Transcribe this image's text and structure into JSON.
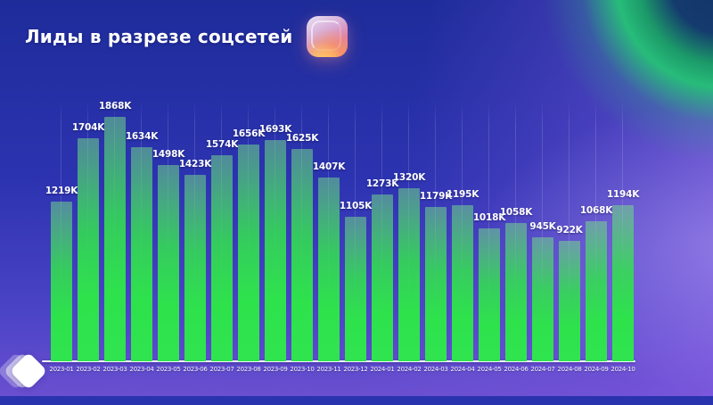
{
  "header": {
    "title": "Лиды в разрезе соцсетей",
    "icon": "instagram-app-icon"
  },
  "branding": {
    "logo": "layered-diamond-logo"
  },
  "colors": {
    "background_top_left": "#1e2c9a",
    "background_bottom_right": "#7a55d8",
    "green_glow": "#27bc7a",
    "bar_gradient_top": "#4da08f",
    "bar_gradient_bottom": "#2ee24c",
    "label_text": "#ffffff",
    "axis_line": "#ffffff"
  },
  "chart_data": {
    "type": "bar",
    "title": "Лиды в разрезе соцсетей",
    "categories": [
      "2023-01",
      "2023-02",
      "2023-03",
      "2023-04",
      "2023-05",
      "2023-06",
      "2023-07",
      "2023-08",
      "2023-09",
      "2023-10",
      "2023-11",
      "2023-12",
      "2024-01",
      "2024-02",
      "2024-03",
      "2024-04",
      "2024-05",
      "2024-06",
      "2024-07",
      "2024-08",
      "2024-09",
      "2024-10"
    ],
    "values": [
      1219,
      1704,
      1868,
      1634,
      1498,
      1423,
      1574,
      1656,
      1693,
      1625,
      1407,
      1105,
      1273,
      1320,
      1179,
      1195,
      1018,
      1058,
      945,
      922,
      1068,
      1194
    ],
    "value_labels": [
      "1219K",
      "1704K",
      "1868K",
      "1634K",
      "1498K",
      "1423K",
      "1574K",
      "1656K",
      "1693K",
      "1625K",
      "1407K",
      "1105K",
      "1273K",
      "1320K",
      "1179K",
      "1195K",
      "1018K",
      "1058K",
      "945K",
      "922K",
      "1068K",
      "1194K"
    ],
    "unit": "K",
    "xlabel": "",
    "ylabel": "",
    "ylim": [
      0,
      1868
    ],
    "legend": "none",
    "grid": "faint vertical line per bar"
  }
}
